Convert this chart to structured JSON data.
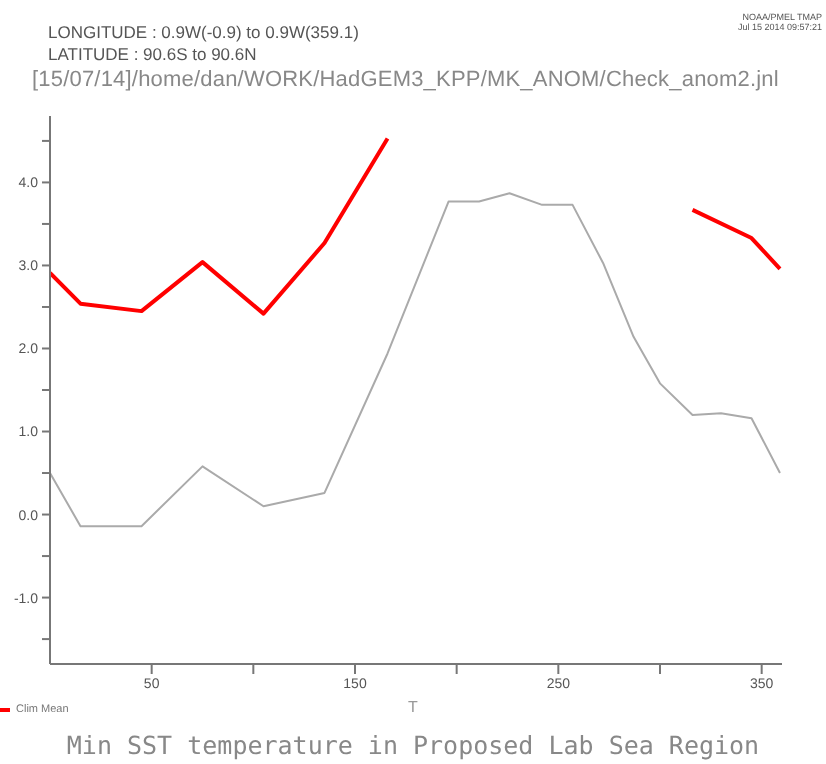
{
  "chart_data": {
    "type": "line",
    "title": "Min SST temperature in Proposed Lab Sea Region",
    "xlabel": "T",
    "annotations": [
      "LONGITUDE : 0.9W(-0.9) to 0.9W(359.1)",
      "LATITUDE : 90.6S to 90.6N",
      "[15/07/14]/home/dan/WORK/HadGEM3_KPP/MK_ANOM/Check_anom2.jnl",
      "NOAA/PMEL TMAP",
      "Jul 15 2014 09:57:21"
    ],
    "series": [
      {
        "name": "Clim Mean",
        "color": "#ff0000",
        "x": [
          0,
          15,
          45,
          75,
          105,
          135,
          166,
          169,
          235,
          300,
          316,
          345,
          359
        ],
        "values": [
          2.91,
          2.54,
          2.45,
          3.04,
          2.42,
          3.27,
          4.53,
          null,
          null,
          null,
          3.67,
          3.33,
          2.96
        ]
      },
      {
        "color": "#aaaaaa",
        "x": [
          0,
          15,
          45,
          75,
          105,
          135,
          166,
          196,
          211,
          226,
          242,
          257,
          272,
          287,
          300,
          316,
          330,
          345,
          359
        ],
        "values": [
          0.5,
          -0.14,
          -0.14,
          0.58,
          0.1,
          0.26,
          1.94,
          3.77,
          3.77,
          3.87,
          3.73,
          3.73,
          3.03,
          2.14,
          1.58,
          1.2,
          1.22,
          1.16,
          0.5
        ]
      }
    ],
    "xlim": [
      0,
      360
    ],
    "xticks": [
      50,
      {
        "value": 100,
        "label": null
      },
      150,
      {
        "value": 200,
        "label": null
      },
      250,
      {
        "value": 300,
        "label": null
      },
      350
    ],
    "ylim": [
      -1.8,
      4.8
    ],
    "yticks": [
      {
        "value": -1.5,
        "label": null
      },
      {
        "value": -1,
        "label": "-1.0"
      },
      {
        "value": -0.5,
        "label": null
      },
      {
        "value": 0,
        "label": "0.0"
      },
      {
        "value": 0.5,
        "label": null
      },
      {
        "value": 1,
        "label": "1.0"
      },
      {
        "value": 1.5,
        "label": null
      },
      {
        "value": 2,
        "label": "2.0"
      },
      {
        "value": 2.5,
        "label": null
      },
      {
        "value": 3,
        "label": "3.0"
      },
      {
        "value": 3.5,
        "label": null
      },
      {
        "value": 4,
        "label": "4.0"
      },
      {
        "value": 4.5,
        "label": null
      }
    ],
    "legend": "bottom left",
    "line_style": "solid",
    "marker": "none",
    "grid": false
  }
}
